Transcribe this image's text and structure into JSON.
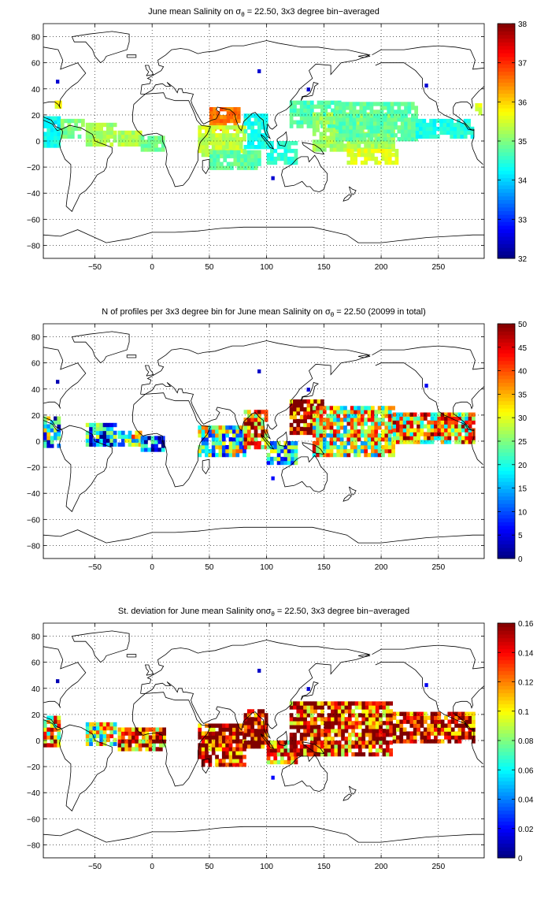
{
  "figure": {
    "panels": [
      {
        "title_prefix": "June mean Salinity on ",
        "title_sigma": "σ",
        "title_sub": "θ",
        "title_suffix": " = 22.50, 3x3 degree bin−averaged"
      },
      {
        "title_prefix": "N of profiles per 3x3 degree bin for June mean Salinity on ",
        "title_sigma": "σ",
        "title_sub": "θ",
        "title_suffix": " = 22.50 (20099 in total)"
      },
      {
        "title_prefix": "St. deviation for June mean Salinity on",
        "title_sigma": "σ",
        "title_sub": "θ",
        "title_suffix": " = 22.50, 3x3 degree bin−averaged"
      }
    ]
  },
  "chart_data": [
    {
      "type": "heatmap",
      "title": "June mean Salinity on σθ = 22.50, 3x3 degree bin−averaged",
      "xlim": [
        -95,
        290
      ],
      "ylim": [
        -90,
        90
      ],
      "xticks": [
        -50,
        0,
        50,
        100,
        150,
        200,
        250
      ],
      "yticks": [
        -80,
        -60,
        -40,
        -20,
        0,
        20,
        40,
        60,
        80
      ],
      "grid": true,
      "colorbar": {
        "range": [
          32,
          38
        ],
        "ticks": [
          "32",
          "33",
          "34",
          "35",
          "36",
          "37",
          "38"
        ]
      },
      "regions": [
        {
          "lon": [
            -95,
            -80
          ],
          "lat": [
            -5,
            18
          ],
          "value": 34.3
        },
        {
          "lon": [
            -80,
            -60
          ],
          "lat": [
            2,
            16
          ],
          "value": 35.0
        },
        {
          "lon": [
            -58,
            -32
          ],
          "lat": [
            -4,
            12
          ],
          "value": 35.2
        },
        {
          "lon": [
            -30,
            -10
          ],
          "lat": [
            -4,
            8
          ],
          "value": 35.3
        },
        {
          "lon": [
            -10,
            10
          ],
          "lat": [
            -8,
            4
          ],
          "value": 34.9
        },
        {
          "lon": [
            -85,
            -80
          ],
          "lat": [
            22,
            30
          ],
          "value": 35.6
        },
        {
          "lon": [
            50,
            75
          ],
          "lat": [
            8,
            26
          ],
          "value": 36.6
        },
        {
          "lon": [
            40,
            80
          ],
          "lat": [
            -12,
            12
          ],
          "value": 35.4
        },
        {
          "lon": [
            50,
            95
          ],
          "lat": [
            -22,
            -8
          ],
          "value": 34.8
        },
        {
          "lon": [
            80,
            100
          ],
          "lat": [
            -6,
            20
          ],
          "value": 34.4
        },
        {
          "lon": [
            100,
            125
          ],
          "lat": [
            -18,
            0
          ],
          "value": 34.5
        },
        {
          "lon": [
            120,
            165
          ],
          "lat": [
            10,
            30
          ],
          "value": 34.7
        },
        {
          "lon": [
            140,
            210
          ],
          "lat": [
            -8,
            20
          ],
          "value": 35.2
        },
        {
          "lon": [
            160,
            230
          ],
          "lat": [
            0,
            28
          ],
          "value": 34.8
        },
        {
          "lon": [
            170,
            215
          ],
          "lat": [
            -18,
            -6
          ],
          "value": 35.6
        },
        {
          "lon": [
            230,
            280
          ],
          "lat": [
            2,
            16
          ],
          "value": 34.4
        },
        {
          "lon": [
            282,
            288
          ],
          "lat": [
            20,
            28
          ],
          "value": 35.5
        }
      ]
    },
    {
      "type": "heatmap",
      "title": "N of profiles per 3x3 degree bin for June mean Salinity on σθ = 22.50 (20099 in total)",
      "xlim": [
        -95,
        290
      ],
      "ylim": [
        -90,
        90
      ],
      "xticks": [
        -50,
        0,
        50,
        100,
        150,
        200,
        250
      ],
      "yticks": [
        -80,
        -60,
        -40,
        -20,
        0,
        20,
        40,
        60,
        80
      ],
      "grid": true,
      "total_profiles": 20099,
      "colorbar": {
        "range": [
          0,
          50
        ],
        "ticks": [
          "0",
          "5",
          "10",
          "15",
          "20",
          "25",
          "30",
          "35",
          "40",
          "45",
          "50"
        ]
      },
      "regions": [
        {
          "lon": [
            -95,
            -80
          ],
          "lat": [
            -5,
            18
          ],
          "value": 18
        },
        {
          "lon": [
            -58,
            -32
          ],
          "lat": [
            -4,
            12
          ],
          "value": 14
        },
        {
          "lon": [
            -30,
            -10
          ],
          "lat": [
            -4,
            8
          ],
          "value": 25
        },
        {
          "lon": [
            -10,
            10
          ],
          "lat": [
            -8,
            4
          ],
          "value": 8
        },
        {
          "lon": [
            40,
            80
          ],
          "lat": [
            -12,
            12
          ],
          "value": 22
        },
        {
          "lon": [
            80,
            100
          ],
          "lat": [
            -6,
            22
          ],
          "value": 40
        },
        {
          "lon": [
            100,
            125
          ],
          "lat": [
            -18,
            0
          ],
          "value": 18
        },
        {
          "lon": [
            120,
            150
          ],
          "lat": [
            5,
            30
          ],
          "value": 46
        },
        {
          "lon": [
            140,
            210
          ],
          "lat": [
            -12,
            25
          ],
          "value": 30
        },
        {
          "lon": [
            210,
            280
          ],
          "lat": [
            -2,
            20
          ],
          "value": 34
        }
      ]
    },
    {
      "type": "heatmap",
      "title": "St. deviation for June mean Salinity onσθ = 22.50, 3x3 degree bin−averaged",
      "xlim": [
        -95,
        290
      ],
      "ylim": [
        -90,
        90
      ],
      "xticks": [
        -50,
        0,
        50,
        100,
        150,
        200,
        250
      ],
      "yticks": [
        -80,
        -60,
        -40,
        -20,
        0,
        20,
        40,
        60,
        80
      ],
      "grid": true,
      "colorbar": {
        "range": [
          0,
          0.16
        ],
        "ticks": [
          "0",
          "0.02",
          "0.04",
          "0.06",
          "0.08",
          "0.1",
          "0.12",
          "0.14",
          "0.16"
        ]
      },
      "regions": [
        {
          "lon": [
            -95,
            -80
          ],
          "lat": [
            -5,
            18
          ],
          "value": 0.11
        },
        {
          "lon": [
            -58,
            -32
          ],
          "lat": [
            -4,
            12
          ],
          "value": 0.09
        },
        {
          "lon": [
            -30,
            10
          ],
          "lat": [
            -8,
            8
          ],
          "value": 0.13
        },
        {
          "lon": [
            40,
            80
          ],
          "lat": [
            -20,
            12
          ],
          "value": 0.15
        },
        {
          "lon": [
            80,
            100
          ],
          "lat": [
            -6,
            22
          ],
          "value": 0.16
        },
        {
          "lon": [
            100,
            125
          ],
          "lat": [
            -18,
            0
          ],
          "value": 0.12
        },
        {
          "lon": [
            120,
            210
          ],
          "lat": [
            -12,
            30
          ],
          "value": 0.14
        },
        {
          "lon": [
            210,
            280
          ],
          "lat": [
            -2,
            20
          ],
          "value": 0.15
        }
      ]
    }
  ]
}
